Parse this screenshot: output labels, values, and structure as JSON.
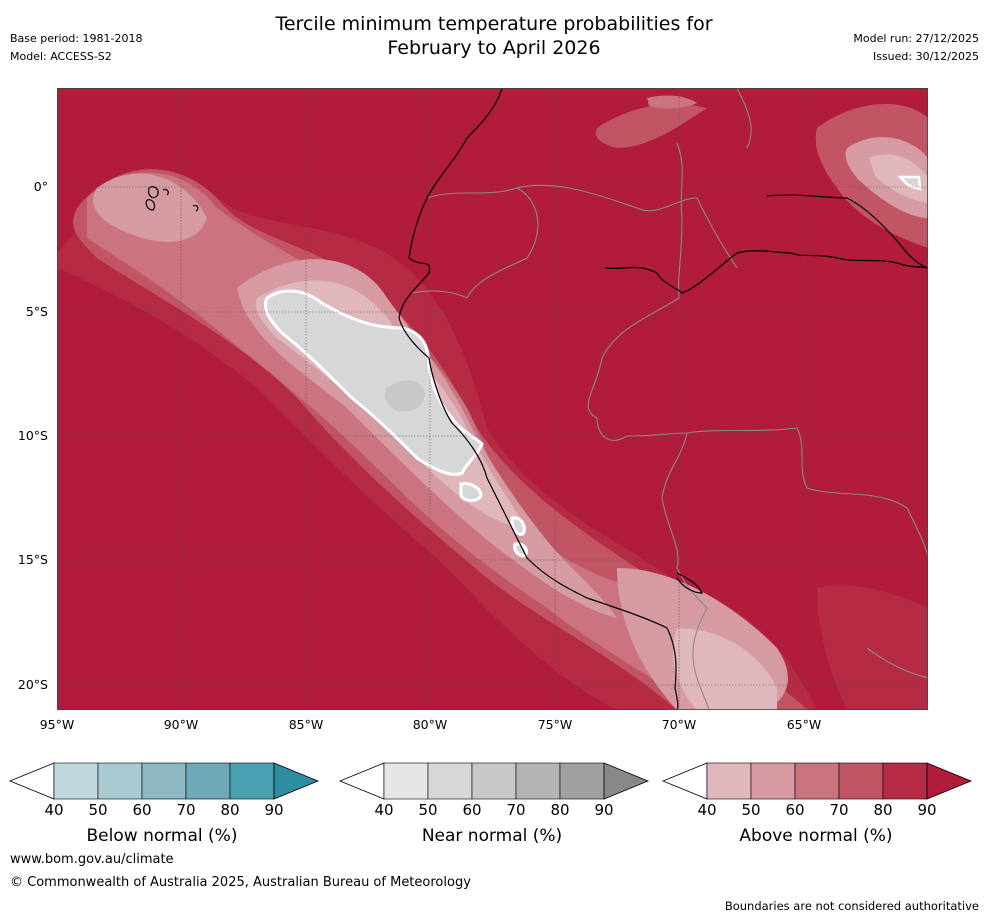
{
  "header": {
    "title_line1": "Tercile minimum temperature probabilities for",
    "title_line2": "February to April 2026",
    "base_period": "Base period: 1981-2018",
    "model": "Model: ACCESS-S2",
    "model_run": "Model run: 27/12/2025",
    "issued": "Issued: 30/12/2025"
  },
  "map": {
    "latitude_labels": [
      "0°",
      "5°S",
      "10°S",
      "15°S",
      "20°S"
    ],
    "longitude_labels": [
      "95°W",
      "90°W",
      "85°W",
      "80°W",
      "75°W",
      "70°W",
      "65°W"
    ],
    "region": "Peru / western South America and eastern Pacific",
    "dominant_category": "Above normal (90%)"
  },
  "colorbars": [
    {
      "title": "Below normal (%)",
      "ticks": [
        "40",
        "50",
        "60",
        "70",
        "80",
        "90"
      ],
      "colors": [
        "#bfd8dd",
        "#a8cbd1",
        "#8bb8c2",
        "#6eaab5",
        "#48a0b0",
        "#2e8ca0"
      ]
    },
    {
      "title": "Near normal (%)",
      "ticks": [
        "40",
        "50",
        "60",
        "70",
        "80",
        "90"
      ],
      "colors": [
        "#e6e6e6",
        "#d7d7d7",
        "#c8c8c8",
        "#b4b4b4",
        "#a0a0a0",
        "#888888"
      ]
    },
    {
      "title": "Above normal (%)",
      "ticks": [
        "40",
        "50",
        "60",
        "70",
        "80",
        "90"
      ],
      "colors": [
        "#e0b7bd",
        "#d69aa2",
        "#cb737f",
        "#c25564",
        "#b52b43",
        "#b01c39"
      ]
    }
  ],
  "footer": {
    "url": "www.bom.gov.au/climate",
    "copyright": "© Commonwealth of Australia 2025, Australian Bureau of Meteorology",
    "disclaimer": "Boundaries are not considered authoritative"
  }
}
